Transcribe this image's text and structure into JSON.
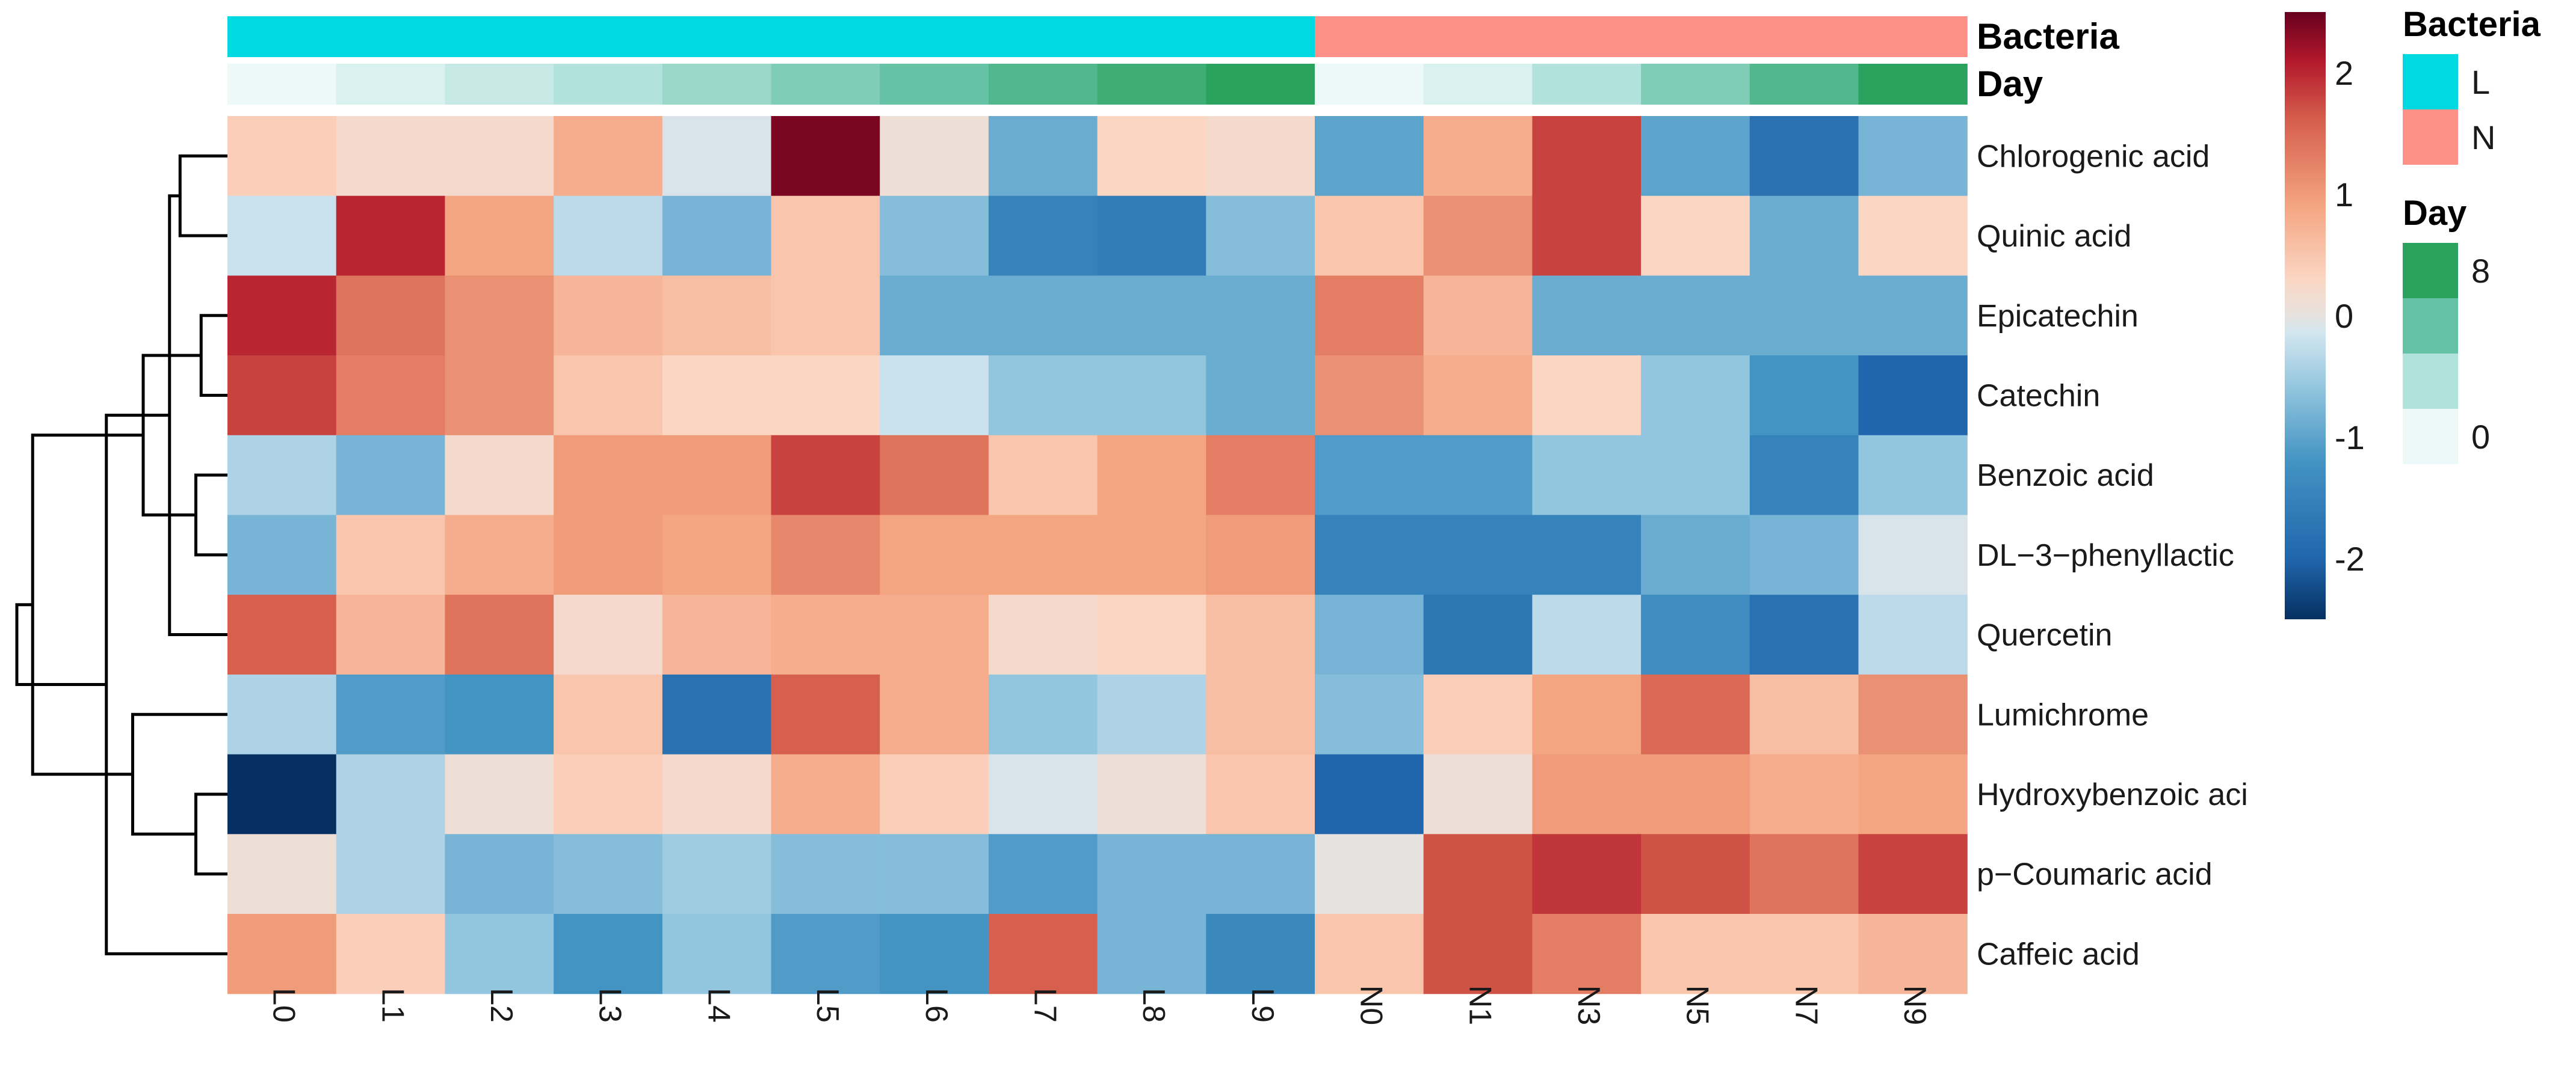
{
  "chart_data": {
    "type": "heatmap",
    "title": "",
    "columns": [
      "L0",
      "L1",
      "L2",
      "L3",
      "L4",
      "L5",
      "L6",
      "L7",
      "L8",
      "L9",
      "N0",
      "N1",
      "N3",
      "N5",
      "N7",
      "N9"
    ],
    "rows": [
      "Chlorogenic acid",
      "Quinic acid",
      "Epicatechin",
      "Catechin",
      "Benzoic acid",
      "DL−3−phenyllactic",
      "Quercetin",
      "Lumichrome",
      "Hydroxybenzoic aci",
      "p−Coumaric acid",
      "Caffeic acid"
    ],
    "values": [
      [
        0.4,
        0.2,
        0.2,
        0.8,
        -0.1,
        2.4,
        0.1,
        -0.9,
        0.3,
        0.2,
        -1.0,
        0.8,
        1.8,
        -1.0,
        -1.8,
        -0.8
      ],
      [
        -0.2,
        2.0,
        0.9,
        -0.3,
        -0.8,
        0.5,
        -0.7,
        -1.5,
        -1.6,
        -0.7,
        0.5,
        1.1,
        1.8,
        0.3,
        -0.9,
        0.3
      ],
      [
        2.0,
        1.4,
        1.1,
        0.7,
        0.6,
        0.5,
        -0.9,
        -0.9,
        -0.9,
        -0.9,
        1.3,
        0.7,
        -0.9,
        -0.9,
        -0.9,
        -0.9
      ],
      [
        1.8,
        1.3,
        1.1,
        0.5,
        0.3,
        0.3,
        -0.2,
        -0.6,
        -0.6,
        -0.9,
        1.1,
        0.8,
        0.3,
        -0.6,
        -1.2,
        -2.0
      ],
      [
        -0.4,
        -0.8,
        0.2,
        1.0,
        1.0,
        1.8,
        1.4,
        0.5,
        0.9,
        1.3,
        -1.1,
        -1.1,
        -0.6,
        -0.6,
        -1.5,
        -0.6
      ],
      [
        -0.8,
        0.5,
        0.8,
        1.0,
        0.9,
        1.2,
        0.9,
        0.9,
        0.9,
        1.0,
        -1.5,
        -1.5,
        -1.5,
        -0.9,
        -0.8,
        -0.1
      ],
      [
        1.6,
        0.7,
        1.4,
        0.2,
        0.7,
        0.8,
        0.8,
        0.2,
        0.3,
        0.6,
        -0.8,
        -1.7,
        -0.3,
        -1.3,
        -1.8,
        -0.3
      ],
      [
        -0.4,
        -1.1,
        -1.2,
        0.5,
        -1.8,
        1.6,
        0.8,
        -0.6,
        -0.4,
        0.6,
        -0.7,
        0.4,
        0.9,
        1.5,
        0.6,
        1.1
      ],
      [
        -2.5,
        -0.4,
        0.1,
        0.4,
        0.2,
        0.8,
        0.4,
        -0.1,
        0.1,
        0.5,
        -2.0,
        0.1,
        1.0,
        1.0,
        0.8,
        0.9
      ],
      [
        0.1,
        -0.4,
        -0.8,
        -0.7,
        -0.5,
        -0.7,
        -0.7,
        -1.1,
        -0.8,
        -0.8,
        0.0,
        1.7,
        1.9,
        1.7,
        1.4,
        1.8
      ],
      [
        1.0,
        0.4,
        -0.6,
        -1.2,
        -0.6,
        -1.1,
        -1.2,
        1.6,
        -0.8,
        -1.4,
        0.5,
        1.7,
        1.3,
        0.5,
        0.5,
        0.7
      ]
    ],
    "color_scale": {
      "min": -2.5,
      "max": 2.5,
      "stops": [
        {
          "value": -2.5,
          "color": "#053061"
        },
        {
          "value": -2.0,
          "color": "#2166ac"
        },
        {
          "value": -1.2,
          "color": "#4393c3"
        },
        {
          "value": -0.6,
          "color": "#92c5de"
        },
        {
          "value": -0.15,
          "color": "#d1e5f0"
        },
        {
          "value": 0.0,
          "color": "#e6e2df"
        },
        {
          "value": 0.3,
          "color": "#fbd6c3"
        },
        {
          "value": 0.9,
          "color": "#f4a582"
        },
        {
          "value": 1.6,
          "color": "#d6604d"
        },
        {
          "value": 2.1,
          "color": "#b2182b"
        },
        {
          "value": 2.5,
          "color": "#67001f"
        }
      ]
    },
    "colorbar": {
      "ticks": [
        2,
        1,
        0,
        -1,
        -2
      ]
    },
    "annotation_tracks": [
      {
        "name": "Bacteria",
        "values": [
          "L",
          "L",
          "L",
          "L",
          "L",
          "L",
          "L",
          "L",
          "L",
          "L",
          "N",
          "N",
          "N",
          "N",
          "N",
          "N"
        ],
        "legend": [
          {
            "label": "L",
            "color": "#00d9e0"
          },
          {
            "label": "N",
            "color": "#ff9088"
          }
        ]
      },
      {
        "name": "Day",
        "values": [
          0,
          1,
          2,
          3,
          4,
          5,
          6,
          7,
          8,
          9,
          0,
          1,
          3,
          5,
          7,
          9
        ],
        "color_scale": [
          {
            "value": 0,
            "color": "#edf8f8"
          },
          {
            "value": 3,
            "color": "#b2e2dc"
          },
          {
            "value": 6,
            "color": "#66c2a4"
          },
          {
            "value": 9,
            "color": "#2ca25f"
          }
        ],
        "legend": [
          {
            "label": "8",
            "color": "#2ca25f"
          },
          {
            "label": "",
            "color": "#66c2a4"
          },
          {
            "label": "",
            "color": "#b2e2dc"
          },
          {
            "label": "0",
            "color": "#edf8f8"
          }
        ]
      }
    ],
    "row_dendrogram": {
      "merges": [
        [
          0,
          1,
          0.9
        ],
        [
          2,
          3,
          0.5
        ],
        [
          4,
          5,
          0.6
        ],
        [
          8,
          9,
          0.6
        ],
        [
          -1,
          6,
          1.1
        ],
        [
          -2,
          -3,
          1.6
        ],
        [
          7,
          -4,
          1.8
        ],
        [
          -5,
          10,
          2.3
        ],
        [
          -6,
          -7,
          3.7
        ],
        [
          -9,
          -8,
          4.0
        ]
      ],
      "note": "merges reference row indices (>=0) or earlier merge numbers as negative (-1 = first merge); third value is merge height"
    }
  }
}
